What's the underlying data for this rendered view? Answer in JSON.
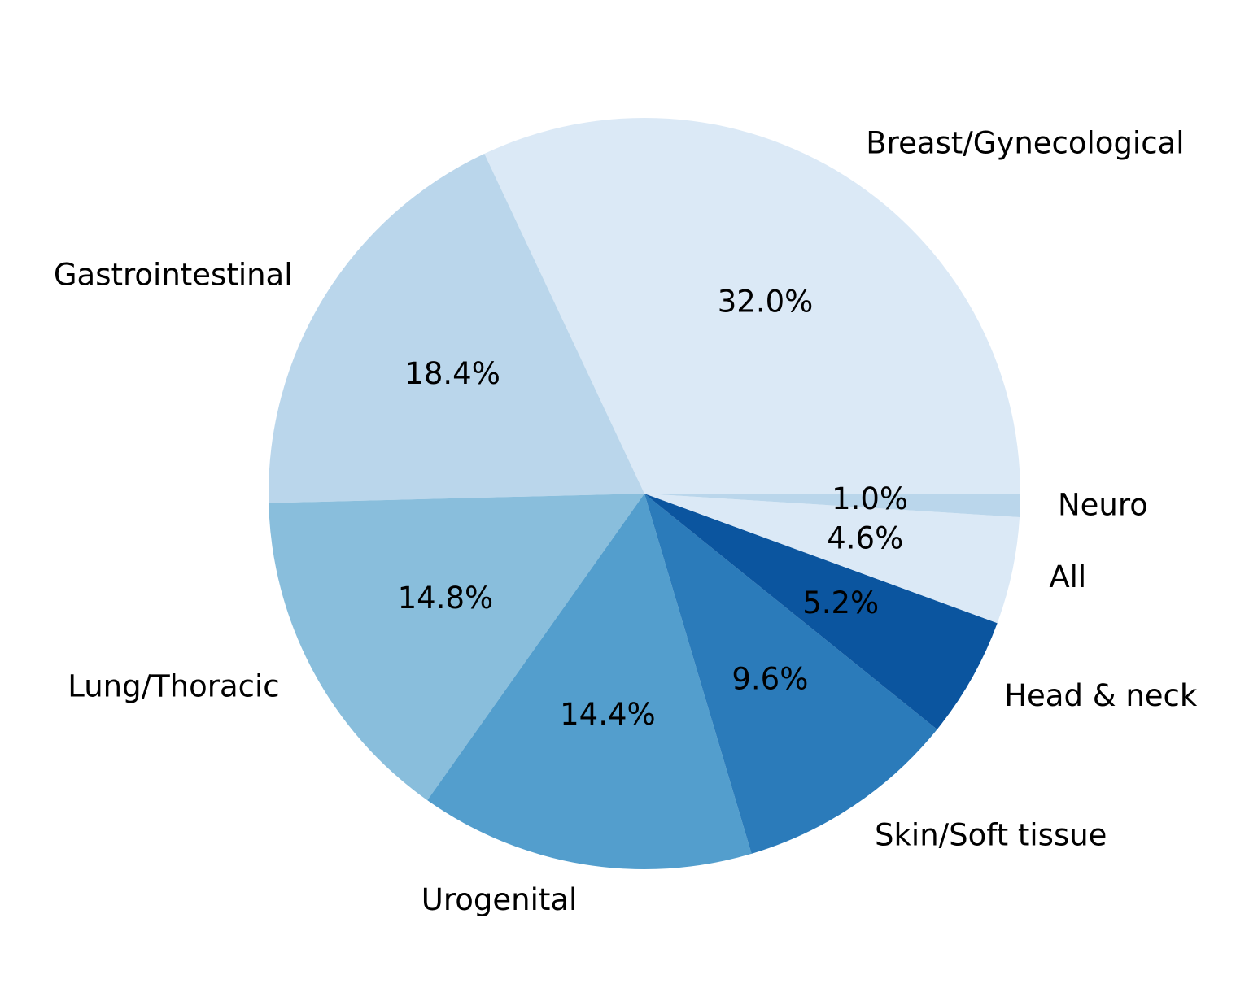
{
  "chart_data": {
    "type": "pie",
    "slices": [
      {
        "label": "Breast/Gynecological",
        "value": 32.0,
        "pct_label": "32.0%",
        "color": "#dbe9f6"
      },
      {
        "label": "Gastrointestinal",
        "value": 18.4,
        "pct_label": "18.4%",
        "color": "#bad6eb"
      },
      {
        "label": "Lung/Thoracic",
        "value": 14.8,
        "pct_label": "14.8%",
        "color": "#89bedc"
      },
      {
        "label": "Urogenital",
        "value": 14.4,
        "pct_label": "14.4%",
        "color": "#539ecd"
      },
      {
        "label": "Skin/Soft tissue",
        "value": 9.6,
        "pct_label": "9.6%",
        "color": "#2b7bba"
      },
      {
        "label": "Head & neck",
        "value": 5.2,
        "pct_label": "5.2%",
        "color": "#0b559f"
      },
      {
        "label": "All",
        "value": 4.6,
        "pct_label": "4.6%",
        "color": "#dbe9f6"
      },
      {
        "label": "Neuro",
        "value": 1.0,
        "pct_label": "1.0%",
        "color": "#bad6eb"
      }
    ],
    "start_angle_deg": 0,
    "direction": "counterclockwise"
  }
}
